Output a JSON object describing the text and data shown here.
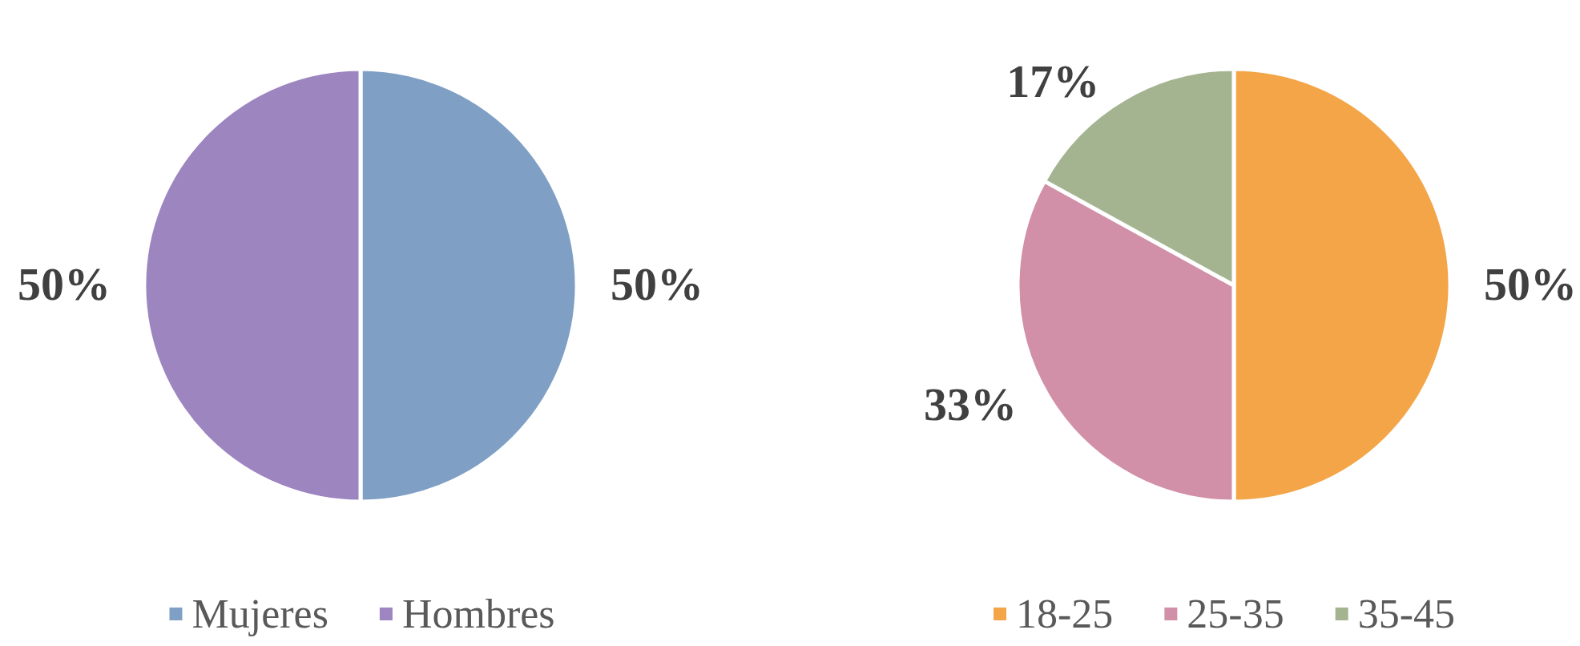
{
  "chart_data": [
    {
      "type": "pie",
      "categories": [
        "Mujeres",
        "Hombres"
      ],
      "values": [
        50,
        50
      ],
      "colors": [
        "#7f9fc4",
        "#9d85c0"
      ],
      "value_labels": [
        "50%",
        "50%"
      ],
      "legend": "bottom"
    },
    {
      "type": "pie",
      "categories": [
        "18-25",
        "25-35",
        "35-45"
      ],
      "values": [
        50,
        33,
        17
      ],
      "colors": [
        "#f3a548",
        "#d190a7",
        "#a5b490"
      ],
      "value_labels": [
        "50%",
        "33%",
        "17%"
      ],
      "legend": "bottom"
    }
  ]
}
